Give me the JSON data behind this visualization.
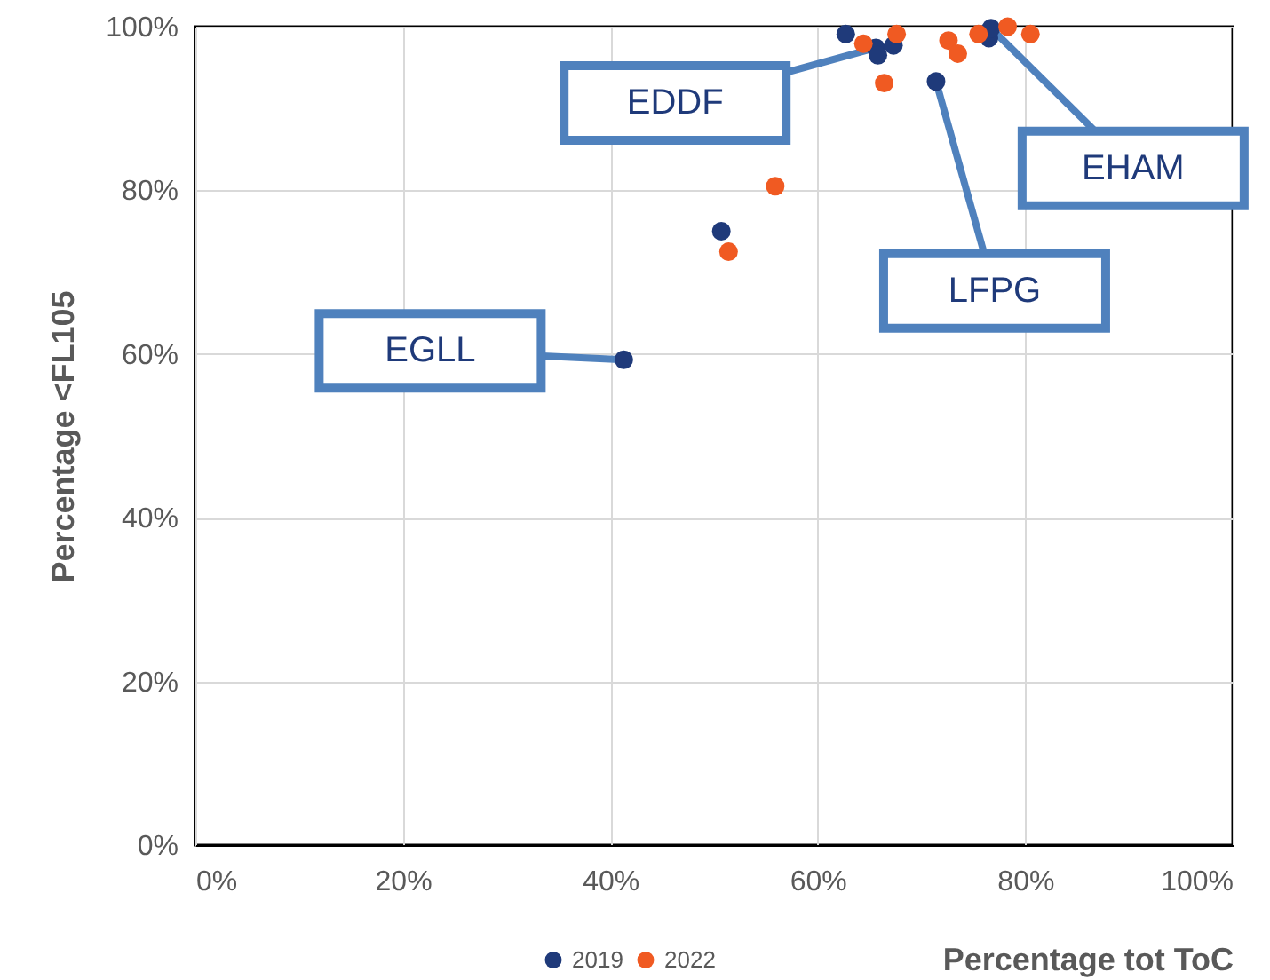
{
  "chart_data": {
    "type": "scatter",
    "xlabel": "Percentage tot ToC",
    "ylabel": "Percentage <FL105",
    "xlim": [
      0,
      100
    ],
    "ylim": [
      0,
      100
    ],
    "xticks": [
      {
        "value": 0,
        "label": "0%"
      },
      {
        "value": 20,
        "label": "20%"
      },
      {
        "value": 40,
        "label": "40%"
      },
      {
        "value": 60,
        "label": "60%"
      },
      {
        "value": 80,
        "label": "80%"
      },
      {
        "value": 100,
        "label": "100%"
      }
    ],
    "yticks": [
      {
        "value": 0,
        "label": "0%"
      },
      {
        "value": 20,
        "label": "20%"
      },
      {
        "value": 40,
        "label": "40%"
      },
      {
        "value": 60,
        "label": "60%"
      },
      {
        "value": 80,
        "label": "80%"
      },
      {
        "value": 100,
        "label": "100%"
      }
    ],
    "grid": true,
    "legend": "bottom",
    "marker": "circle",
    "series": [
      {
        "name": "2019",
        "color": "#1f3a7a",
        "x": [
          41.3,
          50.7,
          62.7,
          65.6,
          65.8,
          67.3,
          71.4,
          76.5,
          76.7
        ],
        "values": [
          59.3,
          75.0,
          99.1,
          97.4,
          96.5,
          97.7,
          93.3,
          98.6,
          99.8
        ]
      },
      {
        "name": "2022",
        "color": "#f05a22",
        "x": [
          51.4,
          55.9,
          64.4,
          66.4,
          67.6,
          72.6,
          73.5,
          75.5,
          78.3,
          80.5
        ],
        "values": [
          72.5,
          80.5,
          97.9,
          93.1,
          99.1,
          98.3,
          96.7,
          99.1,
          100,
          99.1
        ]
      }
    ],
    "annotations": [
      {
        "text": "EDDF",
        "x": 65.6,
        "y": 97.4
      },
      {
        "text": "EHAM",
        "x": 76.7,
        "y": 99.8
      },
      {
        "text": "LFPG",
        "x": 71.4,
        "y": 93.3
      },
      {
        "text": "EGLL",
        "x": 41.3,
        "y": 59.3
      }
    ]
  }
}
